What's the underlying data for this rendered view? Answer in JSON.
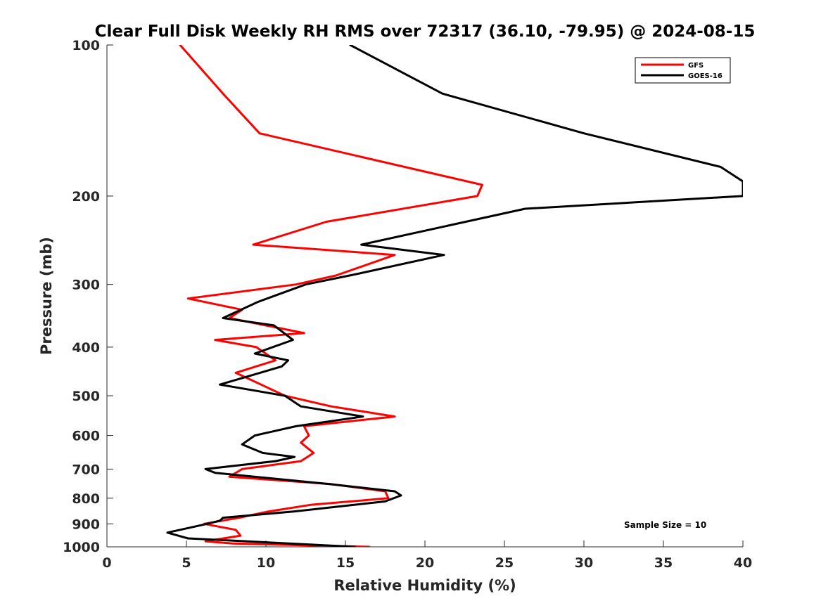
{
  "chart_data": {
    "type": "line",
    "title": "Clear Full Disk Weekly RH RMS over 72317 (36.10, -79.95) @ 2024-08-15",
    "xlabel": "Relative Humidity (%)",
    "ylabel": "Pressure (mb)",
    "xlim": [
      0,
      40
    ],
    "ylim": [
      100,
      1000
    ],
    "y_scale": "log",
    "y_reversed": true,
    "x_ticks": [
      0,
      5,
      10,
      15,
      20,
      25,
      30,
      35,
      40
    ],
    "y_ticks": [
      100,
      200,
      300,
      400,
      500,
      600,
      700,
      800,
      900,
      1000
    ],
    "legend_position": "top-right",
    "annotation": "Sample Size = 10",
    "grid": false,
    "series": [
      {
        "name": "GFS",
        "color": "#ff0000",
        "points": [
          [
            4.6,
            100
          ],
          [
            7.3,
            125
          ],
          [
            9.6,
            150
          ],
          [
            23.6,
            190
          ],
          [
            23.3,
            200
          ],
          [
            13.8,
            225
          ],
          [
            9.2,
            250
          ],
          [
            18.1,
            262
          ],
          [
            14.4,
            288
          ],
          [
            11.9,
            300
          ],
          [
            5.1,
            320
          ],
          [
            8.5,
            337
          ],
          [
            7.7,
            350
          ],
          [
            12.4,
            375
          ],
          [
            6.8,
            387
          ],
          [
            9.4,
            400
          ],
          [
            10.6,
            425
          ],
          [
            8.1,
            450
          ],
          [
            9.7,
            475
          ],
          [
            11.2,
            500
          ],
          [
            14.1,
            525
          ],
          [
            18.1,
            550
          ],
          [
            12.4,
            575
          ],
          [
            12.7,
            600
          ],
          [
            12.2,
            620
          ],
          [
            13.0,
            650
          ],
          [
            12.2,
            675
          ],
          [
            8.5,
            700
          ],
          [
            7.7,
            725
          ],
          [
            14.1,
            750
          ],
          [
            17.5,
            775
          ],
          [
            17.7,
            800
          ],
          [
            12.8,
            825
          ],
          [
            10.2,
            850
          ],
          [
            8.3,
            875
          ],
          [
            6.1,
            900
          ],
          [
            8.1,
            925
          ],
          [
            8.4,
            950
          ],
          [
            6.2,
            975
          ],
          [
            7.9,
            985
          ],
          [
            16.5,
            1000
          ]
        ]
      },
      {
        "name": "GOES-16",
        "color": "#000000",
        "points": [
          [
            15.3,
            100
          ],
          [
            21.1,
            125
          ],
          [
            30.0,
            150
          ],
          [
            38.6,
            175
          ],
          [
            40.0,
            187
          ],
          [
            40.0,
            200
          ],
          [
            26.3,
            212
          ],
          [
            16.0,
            250
          ],
          [
            21.2,
            262
          ],
          [
            15.5,
            287
          ],
          [
            12.5,
            300
          ],
          [
            9.5,
            325
          ],
          [
            7.3,
            350
          ],
          [
            10.5,
            362
          ],
          [
            11.7,
            387
          ],
          [
            9.3,
            412
          ],
          [
            11.4,
            425
          ],
          [
            11.0,
            437
          ],
          [
            7.1,
            475
          ],
          [
            11.2,
            500
          ],
          [
            12.2,
            525
          ],
          [
            16.1,
            550
          ],
          [
            11.9,
            575
          ],
          [
            9.3,
            600
          ],
          [
            8.5,
            625
          ],
          [
            9.8,
            650
          ],
          [
            11.8,
            662
          ],
          [
            10.6,
            675
          ],
          [
            6.2,
            700
          ],
          [
            6.8,
            712
          ],
          [
            14.0,
            750
          ],
          [
            18.1,
            775
          ],
          [
            18.5,
            790
          ],
          [
            17.5,
            812
          ],
          [
            11.8,
            850
          ],
          [
            7.3,
            875
          ],
          [
            7.1,
            887
          ],
          [
            6.3,
            900
          ],
          [
            3.8,
            937
          ],
          [
            5.1,
            962
          ],
          [
            15.6,
            1000
          ]
        ]
      }
    ]
  }
}
